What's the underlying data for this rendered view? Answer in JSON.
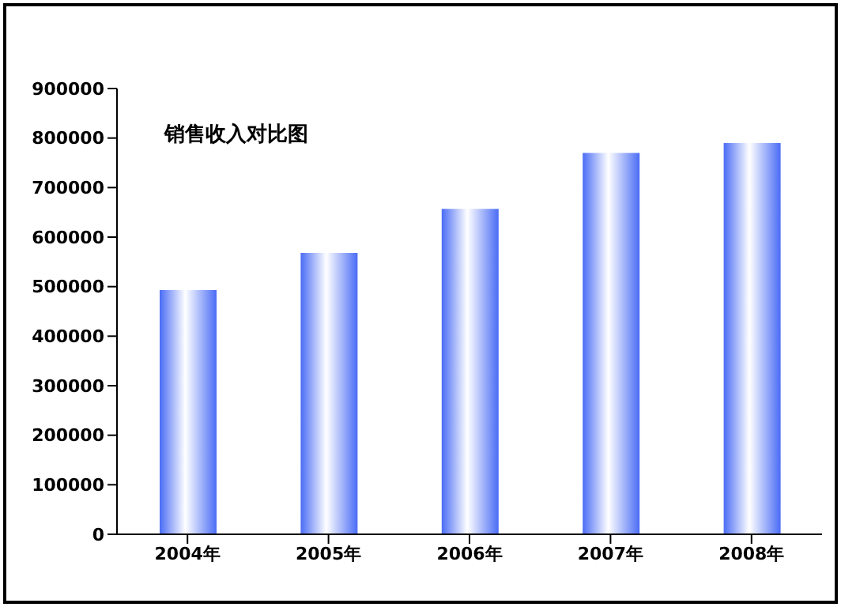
{
  "chart_data": {
    "type": "bar",
    "title": "销售收入对比图",
    "categories": [
      "2004年",
      "2005年",
      "2006年",
      "2007年",
      "2008年"
    ],
    "values": [
      493000,
      568000,
      657000,
      770000,
      790000
    ],
    "color": "#4a6cf5",
    "ylim": [
      0,
      900000
    ],
    "yticks": [
      0,
      100000,
      200000,
      300000,
      400000,
      500000,
      600000,
      700000,
      800000,
      900000
    ],
    "grid": false
  }
}
